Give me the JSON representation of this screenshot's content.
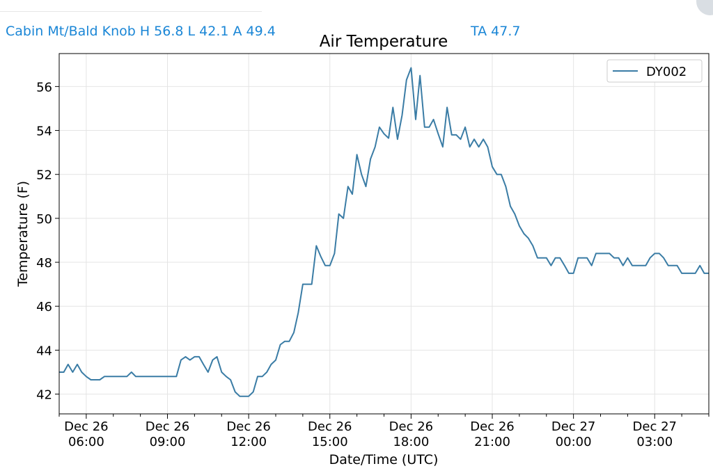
{
  "header": {
    "station_stats": "Cabin Mt/Bald Knob H 56.8 L 42.1 A 49.4",
    "ta": "TA 47.7"
  },
  "colors": {
    "series": "#3a7ca5",
    "header_text": "#1a86d6",
    "grid": "#e4e4e4"
  },
  "chart_data": {
    "type": "line",
    "title": "Air Temperature",
    "xlabel": "Date/Time (UTC)",
    "ylabel": "Temperature (F)",
    "grid": true,
    "legend_position": "top-right",
    "xlim": [
      5.0,
      29.0
    ],
    "ylim": [
      41.1,
      57.5
    ],
    "yticks": [
      42,
      44,
      46,
      48,
      50,
      52,
      54,
      56
    ],
    "xticks": [
      {
        "value": 6,
        "line1": "Dec 26",
        "line2": "06:00"
      },
      {
        "value": 9,
        "line1": "Dec 26",
        "line2": "09:00"
      },
      {
        "value": 12,
        "line1": "Dec 26",
        "line2": "12:00"
      },
      {
        "value": 15,
        "line1": "Dec 26",
        "line2": "15:00"
      },
      {
        "value": 18,
        "line1": "Dec 26",
        "line2": "18:00"
      },
      {
        "value": 21,
        "line1": "Dec 26",
        "line2": "21:00"
      },
      {
        "value": 24,
        "line1": "Dec 27",
        "line2": "00:00"
      },
      {
        "value": 27,
        "line1": "Dec 27",
        "line2": "03:00"
      }
    ],
    "x_unit_note": "x values are hours UTC from Dec 26 00:00",
    "series": [
      {
        "name": "DY002",
        "color": "#3a7ca5",
        "points": [
          [
            5.0,
            43.0
          ],
          [
            5.17,
            43.0
          ],
          [
            5.33,
            43.35
          ],
          [
            5.5,
            43.0
          ],
          [
            5.67,
            43.35
          ],
          [
            5.83,
            43.0
          ],
          [
            6.0,
            42.8
          ],
          [
            6.17,
            42.65
          ],
          [
            6.33,
            42.65
          ],
          [
            6.5,
            42.65
          ],
          [
            6.67,
            42.8
          ],
          [
            6.83,
            42.8
          ],
          [
            7.0,
            42.8
          ],
          [
            7.17,
            42.8
          ],
          [
            7.33,
            42.8
          ],
          [
            7.5,
            42.8
          ],
          [
            7.67,
            43.0
          ],
          [
            7.83,
            42.8
          ],
          [
            8.0,
            42.8
          ],
          [
            8.17,
            42.8
          ],
          [
            8.33,
            42.8
          ],
          [
            8.5,
            42.8
          ],
          [
            8.67,
            42.8
          ],
          [
            8.83,
            42.8
          ],
          [
            9.0,
            42.8
          ],
          [
            9.17,
            42.8
          ],
          [
            9.33,
            42.8
          ],
          [
            9.5,
            43.55
          ],
          [
            9.67,
            43.7
          ],
          [
            9.83,
            43.55
          ],
          [
            10.0,
            43.7
          ],
          [
            10.17,
            43.7
          ],
          [
            10.33,
            43.35
          ],
          [
            10.5,
            43.0
          ],
          [
            10.67,
            43.55
          ],
          [
            10.83,
            43.7
          ],
          [
            11.0,
            43.0
          ],
          [
            11.17,
            42.8
          ],
          [
            11.33,
            42.65
          ],
          [
            11.5,
            42.1
          ],
          [
            11.67,
            41.9
          ],
          [
            11.83,
            41.9
          ],
          [
            12.0,
            41.9
          ],
          [
            12.17,
            42.1
          ],
          [
            12.33,
            42.8
          ],
          [
            12.5,
            42.8
          ],
          [
            12.67,
            43.0
          ],
          [
            12.83,
            43.35
          ],
          [
            13.0,
            43.55
          ],
          [
            13.17,
            44.25
          ],
          [
            13.33,
            44.4
          ],
          [
            13.5,
            44.4
          ],
          [
            13.67,
            44.8
          ],
          [
            13.83,
            45.7
          ],
          [
            14.0,
            47.0
          ],
          [
            14.17,
            47.0
          ],
          [
            14.33,
            47.0
          ],
          [
            14.5,
            48.75
          ],
          [
            14.67,
            48.25
          ],
          [
            14.83,
            47.85
          ],
          [
            15.0,
            47.85
          ],
          [
            15.17,
            48.4
          ],
          [
            15.33,
            50.2
          ],
          [
            15.5,
            50.0
          ],
          [
            15.67,
            51.45
          ],
          [
            15.83,
            51.1
          ],
          [
            16.0,
            52.9
          ],
          [
            16.17,
            52.0
          ],
          [
            16.33,
            51.45
          ],
          [
            16.5,
            52.7
          ],
          [
            16.67,
            53.25
          ],
          [
            16.83,
            54.15
          ],
          [
            17.0,
            53.85
          ],
          [
            17.17,
            53.65
          ],
          [
            17.33,
            55.05
          ],
          [
            17.5,
            53.6
          ],
          [
            17.67,
            54.7
          ],
          [
            17.83,
            56.3
          ],
          [
            18.0,
            56.85
          ],
          [
            18.17,
            54.5
          ],
          [
            18.33,
            56.5
          ],
          [
            18.5,
            54.15
          ],
          [
            18.67,
            54.15
          ],
          [
            18.83,
            54.5
          ],
          [
            19.0,
            53.85
          ],
          [
            19.17,
            53.25
          ],
          [
            19.33,
            55.05
          ],
          [
            19.5,
            53.8
          ],
          [
            19.67,
            53.8
          ],
          [
            19.83,
            53.6
          ],
          [
            20.0,
            54.15
          ],
          [
            20.17,
            53.25
          ],
          [
            20.33,
            53.6
          ],
          [
            20.5,
            53.25
          ],
          [
            20.67,
            53.6
          ],
          [
            20.83,
            53.25
          ],
          [
            21.0,
            52.35
          ],
          [
            21.17,
            52.0
          ],
          [
            21.33,
            52.0
          ],
          [
            21.5,
            51.45
          ],
          [
            21.67,
            50.55
          ],
          [
            21.83,
            50.2
          ],
          [
            22.0,
            49.65
          ],
          [
            22.17,
            49.3
          ],
          [
            22.33,
            49.1
          ],
          [
            22.5,
            48.75
          ],
          [
            22.67,
            48.2
          ],
          [
            22.83,
            48.2
          ],
          [
            23.0,
            48.2
          ],
          [
            23.17,
            47.85
          ],
          [
            23.33,
            48.2
          ],
          [
            23.5,
            48.2
          ],
          [
            23.67,
            47.85
          ],
          [
            23.83,
            47.5
          ],
          [
            24.0,
            47.5
          ],
          [
            24.17,
            48.2
          ],
          [
            24.33,
            48.2
          ],
          [
            24.5,
            48.2
          ],
          [
            24.67,
            47.85
          ],
          [
            24.83,
            48.4
          ],
          [
            25.0,
            48.4
          ],
          [
            25.17,
            48.4
          ],
          [
            25.33,
            48.4
          ],
          [
            25.5,
            48.2
          ],
          [
            25.67,
            48.2
          ],
          [
            25.83,
            47.85
          ],
          [
            26.0,
            48.2
          ],
          [
            26.17,
            47.85
          ],
          [
            26.33,
            47.85
          ],
          [
            26.5,
            47.85
          ],
          [
            26.67,
            47.85
          ],
          [
            26.83,
            48.2
          ],
          [
            27.0,
            48.4
          ],
          [
            27.17,
            48.4
          ],
          [
            27.33,
            48.2
          ],
          [
            27.5,
            47.85
          ],
          [
            27.67,
            47.85
          ],
          [
            27.83,
            47.85
          ],
          [
            28.0,
            47.5
          ],
          [
            28.17,
            47.5
          ],
          [
            28.33,
            47.5
          ],
          [
            28.5,
            47.5
          ],
          [
            28.67,
            47.85
          ],
          [
            28.83,
            47.5
          ],
          [
            29.0,
            47.5
          ]
        ]
      }
    ]
  }
}
